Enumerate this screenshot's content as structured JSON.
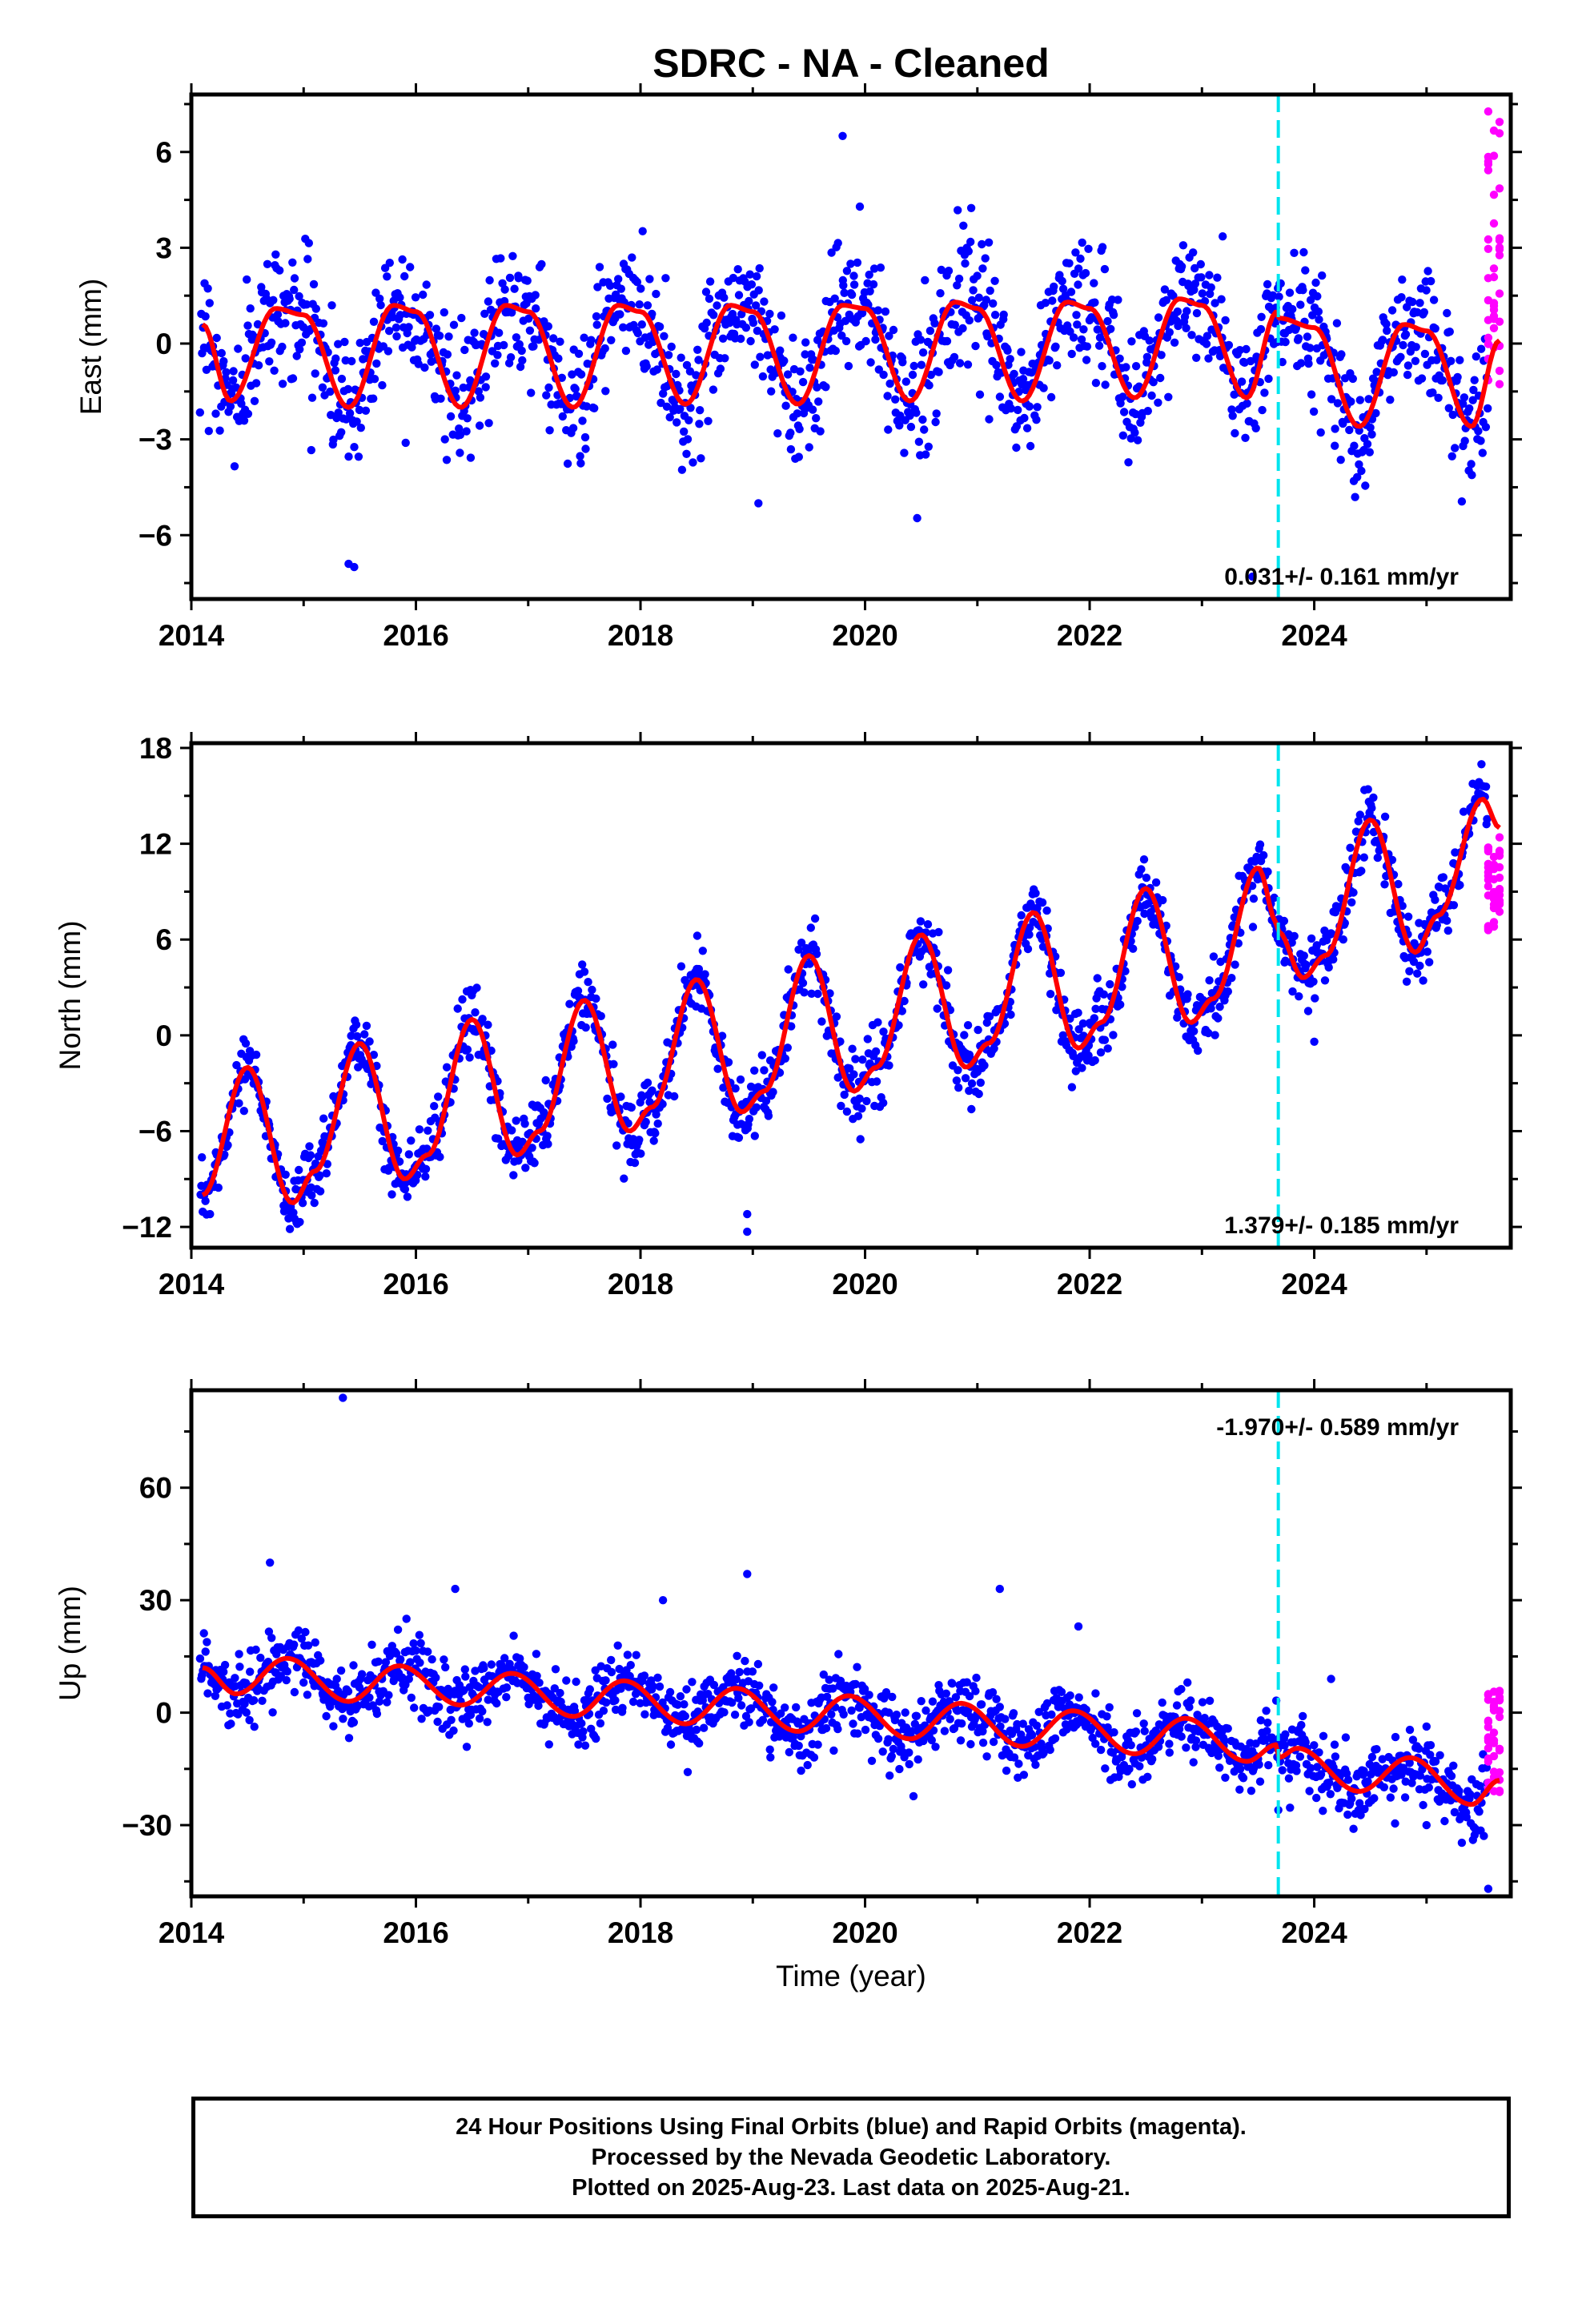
{
  "title": "SDRC  - NA - Cleaned",
  "colors": {
    "final": "#0000ff",
    "rapid": "#ff00ff",
    "model": "#ff0000",
    "offset": "#00e5ee"
  },
  "chart_data": [
    {
      "type": "scatter",
      "name": "east",
      "ylabel": "East (mm)",
      "xlabel": "",
      "xlim": [
        2014.0,
        2025.75
      ],
      "ylim": [
        -8,
        7.8
      ],
      "yticks": [
        -6,
        -3,
        0,
        3,
        6
      ],
      "xticks": [
        2014,
        2016,
        2018,
        2020,
        2022,
        2024
      ],
      "offset_epoch": 2023.68,
      "rate_label": "0.031+/- 0.161 mm/yr",
      "rate_position": "bottom-right",
      "model": {
        "amplitude": 1.5,
        "phase": 2014.4,
        "trend": 0.031,
        "base": -0.3,
        "points": [
          [
            2014.1,
            0.6
          ],
          [
            2014.35,
            -1.8
          ],
          [
            2014.75,
            1.1
          ],
          [
            2015.0,
            0.9
          ],
          [
            2015.4,
            -2.0
          ],
          [
            2015.8,
            1.2
          ],
          [
            2016.0,
            1.0
          ],
          [
            2016.4,
            -2.0
          ],
          [
            2016.8,
            1.2
          ],
          [
            2017.0,
            1.0
          ],
          [
            2017.4,
            -2.0
          ],
          [
            2017.8,
            1.2
          ],
          [
            2018.0,
            1.0
          ],
          [
            2018.4,
            -1.9
          ],
          [
            2018.8,
            1.2
          ],
          [
            2019.0,
            1.0
          ],
          [
            2019.4,
            -1.9
          ],
          [
            2019.8,
            1.2
          ],
          [
            2020.0,
            1.1
          ],
          [
            2020.4,
            -1.8
          ],
          [
            2020.8,
            1.3
          ],
          [
            2021.0,
            1.1
          ],
          [
            2021.4,
            -1.8
          ],
          [
            2021.8,
            1.3
          ],
          [
            2022.0,
            1.1
          ],
          [
            2022.4,
            -1.7
          ],
          [
            2022.8,
            1.4
          ],
          [
            2023.0,
            1.2
          ],
          [
            2023.4,
            -1.7
          ],
          [
            2023.67,
            1.0
          ],
          [
            2023.68,
            0.8
          ],
          [
            2024.0,
            0.5
          ],
          [
            2024.4,
            -2.6
          ],
          [
            2024.8,
            0.6
          ],
          [
            2025.0,
            0.4
          ],
          [
            2025.4,
            -2.6
          ],
          [
            2025.65,
            0.1
          ]
        ]
      },
      "data_summary": {
        "scatter_sd": 1.0,
        "outliers": [
          [
            2015.4,
            -6.9
          ],
          [
            2015.45,
            -7.0
          ],
          [
            2019.8,
            6.5
          ],
          [
            2019.05,
            -5.0
          ],
          [
            2023.45,
            -7.3
          ]
        ],
        "rapid_x": [
          2025.55,
          2025.65
        ],
        "rapid_range": [
          -1.5,
          7.5
        ]
      }
    },
    {
      "type": "scatter",
      "name": "north",
      "ylabel": "North (mm)",
      "xlabel": "",
      "xlim": [
        2014.0,
        2025.75
      ],
      "ylim": [
        -13.3,
        18.3
      ],
      "yticks": [
        -12,
        -6,
        0,
        6,
        12,
        18
      ],
      "xticks": [
        2014,
        2016,
        2018,
        2020,
        2022,
        2024
      ],
      "offset_epoch": 2023.68,
      "rate_label": "1.379+/- 0.185 mm/yr",
      "rate_position": "bottom-right",
      "model": {
        "points": [
          [
            2014.1,
            -10.0
          ],
          [
            2014.5,
            -2.0
          ],
          [
            2014.9,
            -10.5
          ],
          [
            2015.1,
            -8.5
          ],
          [
            2015.5,
            -0.5
          ],
          [
            2015.9,
            -9.0
          ],
          [
            2016.1,
            -7.5
          ],
          [
            2016.5,
            1.0
          ],
          [
            2016.9,
            -7.5
          ],
          [
            2017.1,
            -6.0
          ],
          [
            2017.5,
            2.2
          ],
          [
            2017.9,
            -6.0
          ],
          [
            2018.1,
            -4.5
          ],
          [
            2018.5,
            3.5
          ],
          [
            2018.9,
            -4.8
          ],
          [
            2019.1,
            -3.5
          ],
          [
            2019.5,
            5.0
          ],
          [
            2019.9,
            -3.5
          ],
          [
            2020.1,
            -2.0
          ],
          [
            2020.5,
            6.3
          ],
          [
            2020.9,
            -2.0
          ],
          [
            2021.1,
            -0.5
          ],
          [
            2021.5,
            7.7
          ],
          [
            2021.9,
            -0.8
          ],
          [
            2022.1,
            0.8
          ],
          [
            2022.5,
            9.2
          ],
          [
            2022.9,
            0.8
          ],
          [
            2023.1,
            2.3
          ],
          [
            2023.5,
            10.5
          ],
          [
            2023.67,
            7.0
          ],
          [
            2023.68,
            6.5
          ],
          [
            2023.9,
            3.6
          ],
          [
            2024.1,
            5.0
          ],
          [
            2024.5,
            13.5
          ],
          [
            2024.9,
            5.2
          ],
          [
            2025.1,
            7.5
          ],
          [
            2025.5,
            14.8
          ],
          [
            2025.65,
            13.0
          ]
        ]
      },
      "data_summary": {
        "scatter_sd": 1.1,
        "outliers": [
          [
            2018.95,
            -11.2
          ],
          [
            2018.95,
            -12.3
          ],
          [
            2024.0,
            -0.4
          ]
        ],
        "rapid_x": [
          2025.55,
          2025.65
        ],
        "rapid_range": [
          6.2,
          12.5
        ]
      }
    },
    {
      "type": "scatter",
      "name": "up",
      "ylabel": "Up (mm)",
      "xlabel": "Time (year)",
      "xlim": [
        2014.0,
        2025.75
      ],
      "ylim": [
        -49,
        86
      ],
      "yticks": [
        -30,
        0,
        30,
        60
      ],
      "xticks": [
        2014,
        2016,
        2018,
        2020,
        2022,
        2024
      ],
      "offset_epoch": 2023.68,
      "rate_label": "-1.970+/- 0.589 mm/yr",
      "rate_position": "top-right",
      "model": {
        "points": [
          [
            2014.1,
            12.0
          ],
          [
            2014.4,
            5.0
          ],
          [
            2014.85,
            14.5
          ],
          [
            2015.4,
            3.0
          ],
          [
            2015.85,
            12.5
          ],
          [
            2016.4,
            2.0
          ],
          [
            2016.85,
            10.5
          ],
          [
            2017.4,
            -1.0
          ],
          [
            2017.85,
            8.5
          ],
          [
            2018.4,
            -3.0
          ],
          [
            2018.85,
            6.5
          ],
          [
            2019.4,
            -5.0
          ],
          [
            2019.85,
            4.5
          ],
          [
            2020.4,
            -7.0
          ],
          [
            2020.85,
            2.5
          ],
          [
            2021.4,
            -9.0
          ],
          [
            2021.85,
            0.5
          ],
          [
            2022.4,
            -11.0
          ],
          [
            2022.85,
            -1.5
          ],
          [
            2023.4,
            -13.0
          ],
          [
            2023.67,
            -8.5
          ],
          [
            2023.68,
            -12.0
          ],
          [
            2023.85,
            -9.5
          ],
          [
            2024.4,
            -21.0
          ],
          [
            2024.85,
            -12.0
          ],
          [
            2025.4,
            -24.5
          ],
          [
            2025.65,
            -18.0
          ]
        ]
      },
      "data_summary": {
        "scatter_sd": 4.5,
        "outliers": [
          [
            2015.35,
            84
          ],
          [
            2014.7,
            40
          ],
          [
            2018.95,
            37
          ],
          [
            2021.2,
            33
          ],
          [
            2016.35,
            33
          ],
          [
            2018.2,
            30
          ],
          [
            2021.9,
            23
          ],
          [
            2024.15,
            9
          ],
          [
            2023.68,
            -26
          ],
          [
            2025.55,
            -47
          ],
          [
            2024.35,
            -31
          ],
          [
            2025.0,
            -30
          ]
        ],
        "rapid_x": [
          2025.55,
          2025.65
        ],
        "rapid_range": [
          -22,
          7
        ]
      }
    }
  ],
  "footer": {
    "line1": "24 Hour Positions Using Final Orbits (blue) and Rapid Orbits (magenta).",
    "line2": "Processed by the Nevada Geodetic Laboratory.",
    "line3": "Plotted on 2025-Aug-23. Last data on 2025-Aug-21."
  }
}
